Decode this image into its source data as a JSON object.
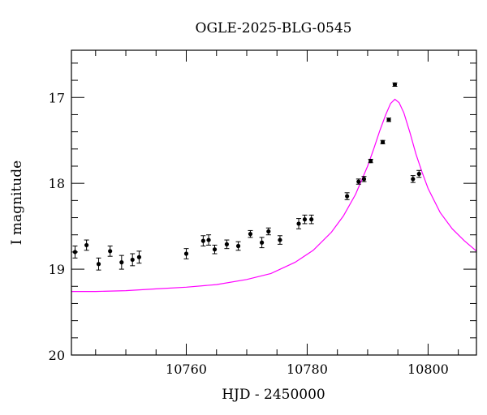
{
  "chart_data": {
    "type": "scatter",
    "title": "OGLE-2025-BLG-0545",
    "xlabel": "HJD - 2450000",
    "ylabel": "I magnitude",
    "xlim": [
      10741,
      10808
    ],
    "ylim": [
      20,
      16.45
    ],
    "y_inverted": true,
    "x_ticks": [
      10760,
      10780,
      10800
    ],
    "x_tick_labels": [
      "10760",
      "10780",
      "10800"
    ],
    "y_ticks": [
      17,
      18,
      19,
      20
    ],
    "y_tick_labels": [
      "17",
      "18",
      "19",
      "20"
    ],
    "point_color": "#000000",
    "model_color": "#ff00ff",
    "series": [
      {
        "kind": "points-with-errorbars",
        "x": [
          10741.6,
          10743.5,
          10745.5,
          10747.4,
          10749.3,
          10751.1,
          10752.2,
          10760.0,
          10762.8,
          10763.7,
          10764.7,
          10766.7,
          10768.6,
          10770.6,
          10772.5,
          10773.6,
          10775.5,
          10778.6,
          10779.6,
          10780.7,
          10786.6,
          10788.5,
          10789.4,
          10790.5,
          10792.5,
          10793.5,
          10794.5,
          10797.5,
          10798.5
        ],
        "y": [
          18.8,
          18.72,
          18.94,
          18.79,
          18.92,
          18.89,
          18.86,
          18.82,
          18.67,
          18.66,
          18.77,
          18.71,
          18.73,
          18.59,
          18.69,
          18.56,
          18.66,
          18.47,
          18.42,
          18.42,
          18.15,
          17.98,
          17.95,
          17.74,
          17.52,
          17.26,
          16.85,
          17.95,
          17.89
        ],
        "err": [
          0.07,
          0.06,
          0.07,
          0.06,
          0.08,
          0.07,
          0.07,
          0.06,
          0.06,
          0.06,
          0.05,
          0.05,
          0.05,
          0.04,
          0.06,
          0.04,
          0.05,
          0.06,
          0.05,
          0.05,
          0.04,
          0.03,
          0.03,
          0.02,
          0.02,
          0.02,
          0.02,
          0.04,
          0.04
        ]
      },
      {
        "kind": "model-curve",
        "x": [
          10741,
          10745,
          10750,
          10755,
          10760,
          10765,
          10770,
          10774,
          10778,
          10781,
          10784,
          10786,
          10788,
          10790,
          10791,
          10792,
          10793,
          10793.8,
          10794.5,
          10795.2,
          10796,
          10797,
          10798,
          10799,
          10800,
          10802,
          10804,
          10806,
          10808
        ],
        "y": [
          19.26,
          19.26,
          19.25,
          19.23,
          19.21,
          19.18,
          19.12,
          19.05,
          18.92,
          18.78,
          18.57,
          18.38,
          18.13,
          17.8,
          17.6,
          17.39,
          17.2,
          17.07,
          17.02,
          17.06,
          17.18,
          17.41,
          17.66,
          17.87,
          18.06,
          18.34,
          18.53,
          18.67,
          18.79
        ]
      }
    ]
  }
}
